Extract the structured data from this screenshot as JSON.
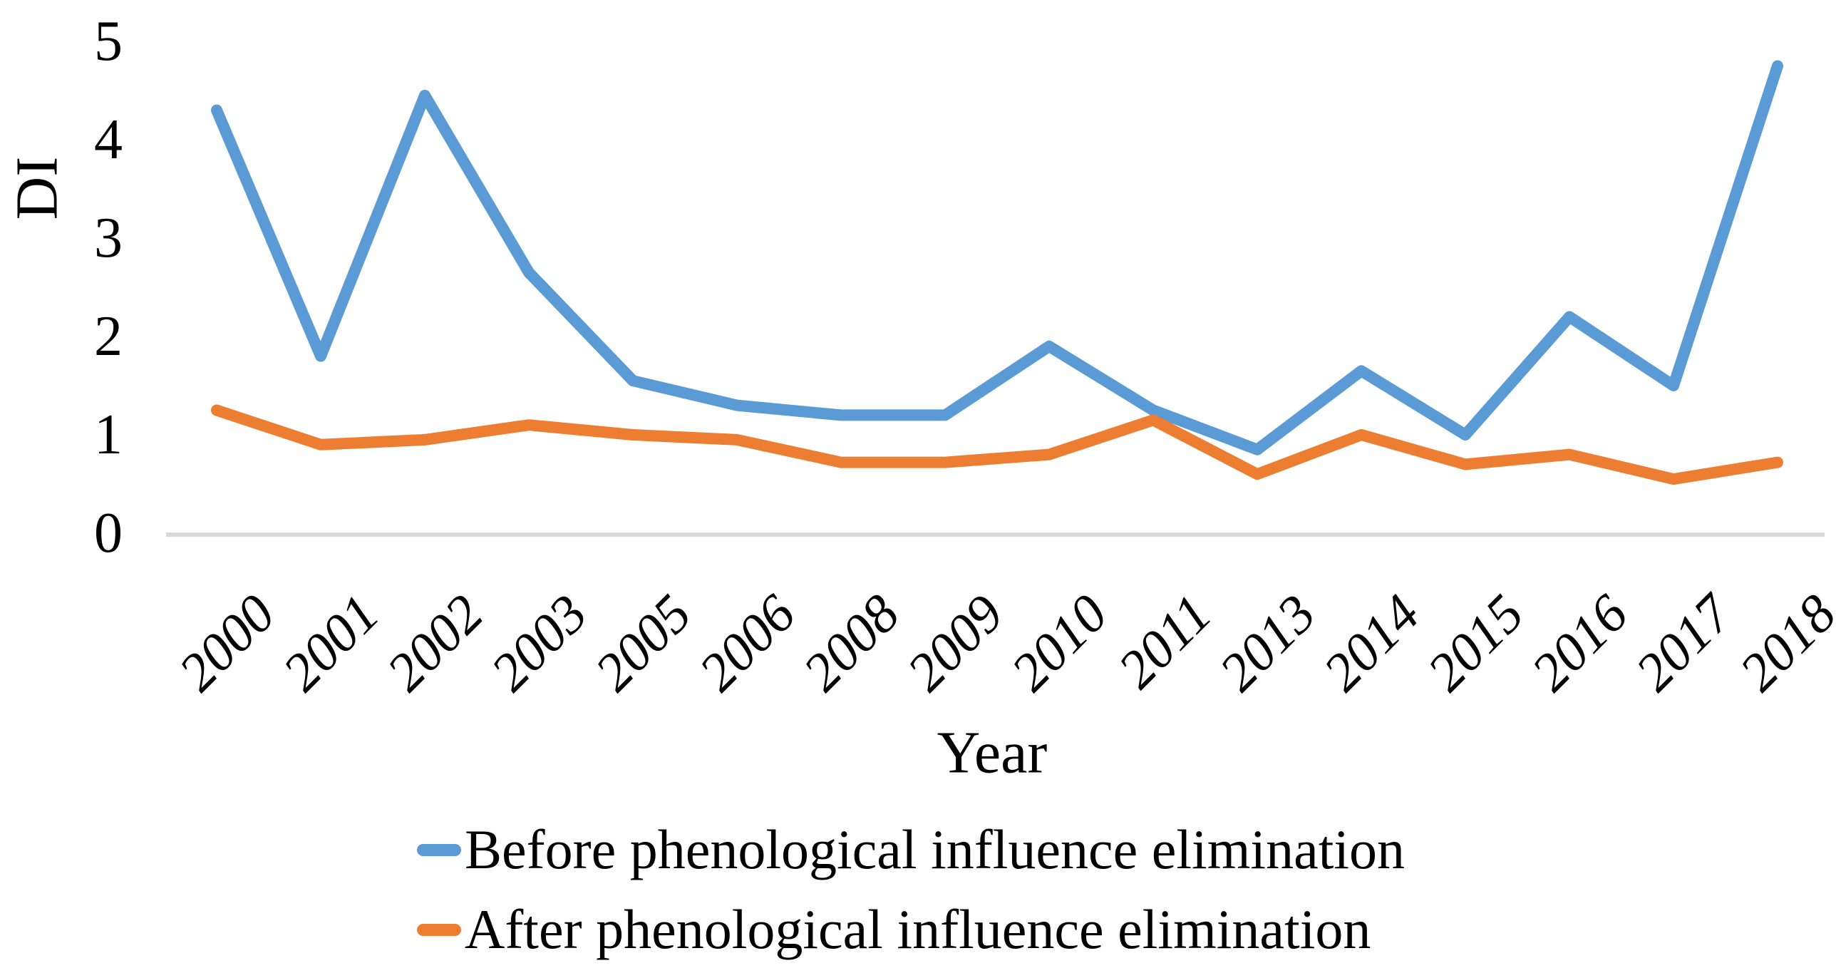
{
  "chart_data": {
    "type": "line",
    "title": "",
    "xlabel": "Year",
    "ylabel": "DI",
    "categories": [
      "2000",
      "2001",
      "2002",
      "2003",
      "2005",
      "2006",
      "2008",
      "2009",
      "2010",
      "2011",
      "2013",
      "2014",
      "2015",
      "2016",
      "2017",
      "2018"
    ],
    "yticks": [
      "0",
      "1",
      "2",
      "3",
      "4",
      "5"
    ],
    "ylim": [
      0,
      5
    ],
    "grid": false,
    "legend_position": "bottom-left",
    "baseline_color": "#D9D9D9",
    "series": [
      {
        "name": "Before phenological influence elimination",
        "color": "#5B9BD5",
        "values": [
          4.3,
          1.8,
          4.45,
          2.65,
          1.55,
          1.3,
          1.2,
          1.2,
          1.9,
          1.25,
          0.85,
          1.65,
          1.0,
          2.2,
          1.5,
          4.75
        ]
      },
      {
        "name": "After phenological influence elimination",
        "color": "#ED7D31",
        "values": [
          1.25,
          0.9,
          0.95,
          1.1,
          1.0,
          0.95,
          0.72,
          0.72,
          0.8,
          1.15,
          0.6,
          1.0,
          0.7,
          0.8,
          0.55,
          0.72
        ]
      }
    ]
  }
}
